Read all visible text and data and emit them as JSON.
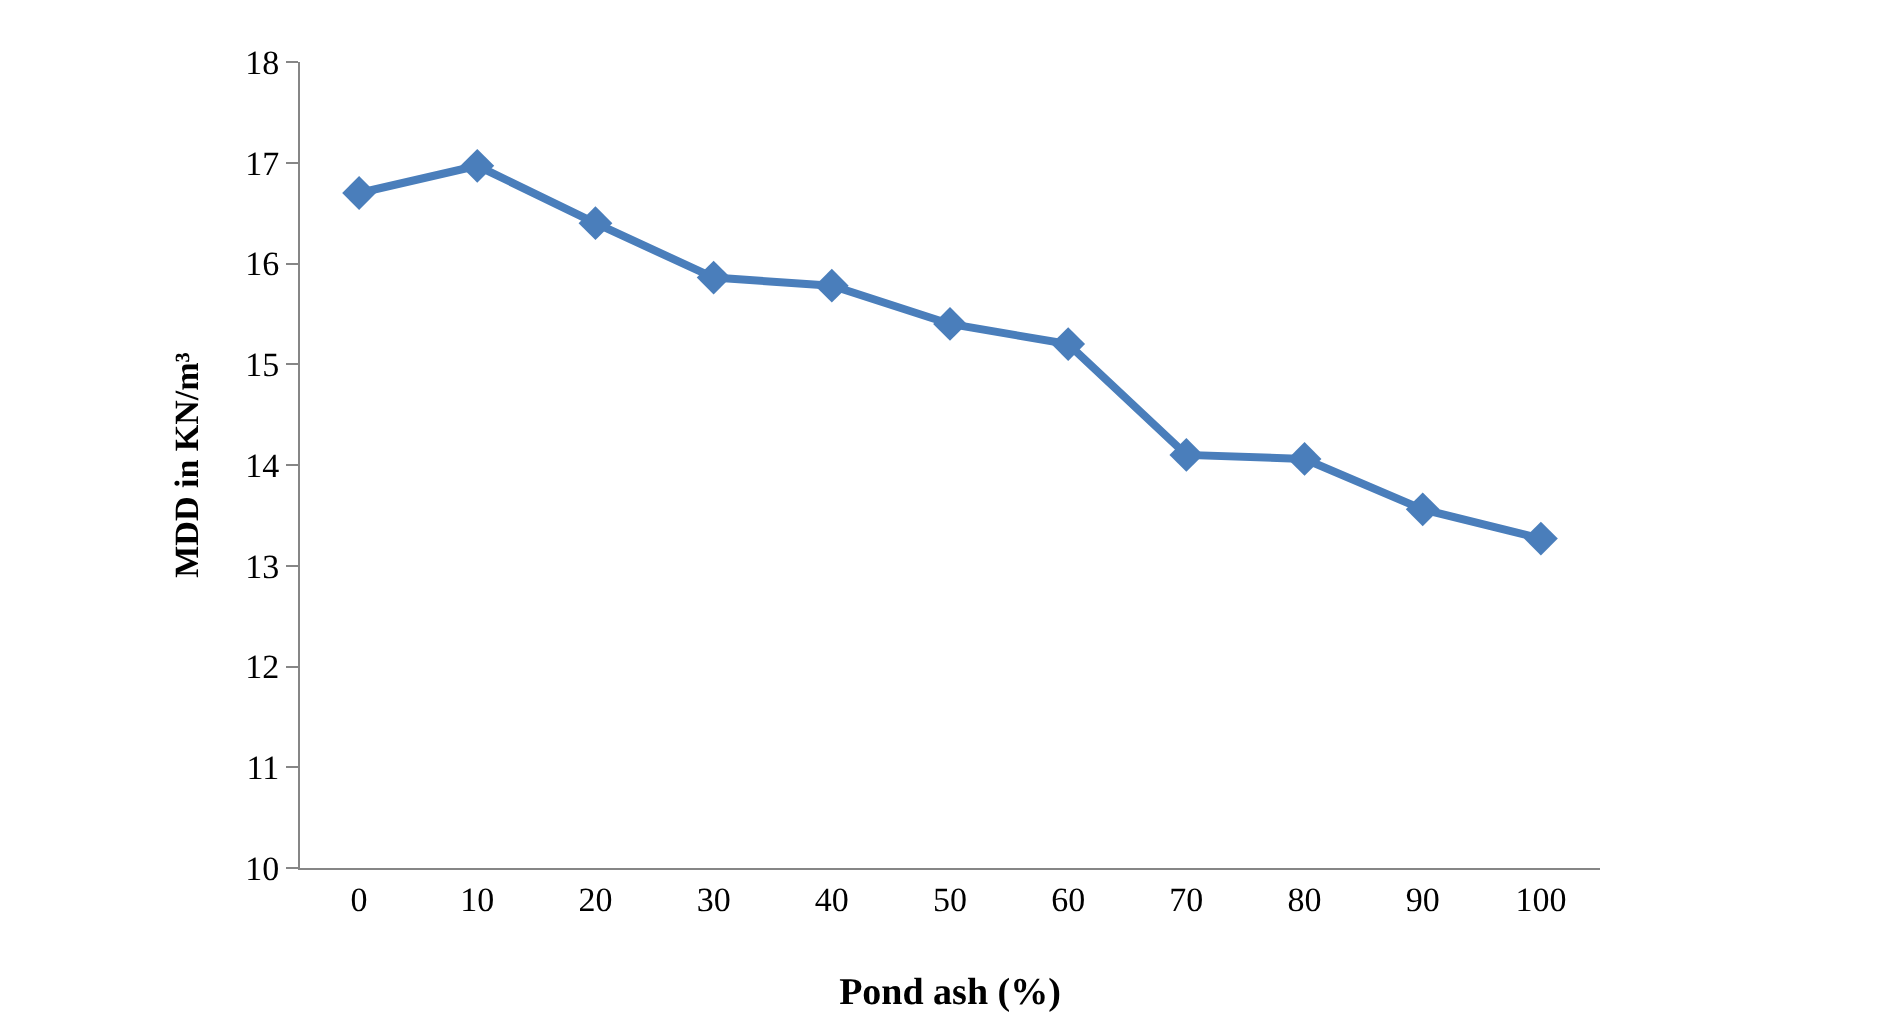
{
  "chart_data": {
    "type": "line",
    "xlabel": "Pond ash (%)",
    "ylabel": "MDD in KN/m³",
    "categories": [
      "0",
      "10",
      "20",
      "30",
      "40",
      "50",
      "60",
      "70",
      "80",
      "90",
      "100"
    ],
    "series": [
      {
        "color": "#4a7ebb",
        "values": [
          16.7,
          16.97,
          16.4,
          15.86,
          15.78,
          15.4,
          15.2,
          14.1,
          14.06,
          13.56,
          13.27
        ]
      }
    ],
    "ylim": [
      10,
      18
    ],
    "yticks": [
      10,
      11,
      12,
      13,
      14,
      15,
      16,
      17,
      18
    ],
    "marker": "diamond",
    "line_style": "solid"
  }
}
